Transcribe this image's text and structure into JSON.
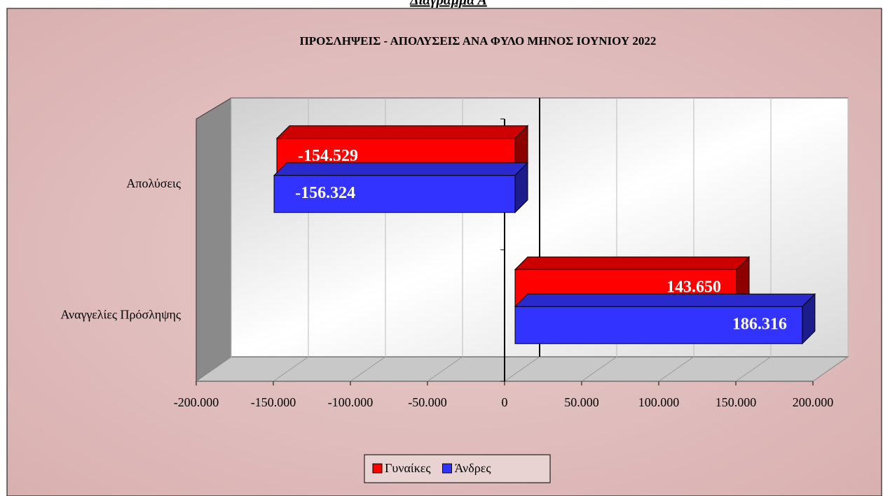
{
  "chart_data": {
    "type": "bar3d_horizontal",
    "heading": "Διάγραμμα Α",
    "title": "ΠΡΟΣΛΗΨΕΙΣ - ΑΠΟΛΥΣΕΙΣ ΑΝΑ ΦΥΛΟ ΜΗΝΟΣ  ΙΟΥΝΙΟΥ  2022",
    "categories": [
      "Απολύσεις",
      "Αναγγελίες Πρόσληψης"
    ],
    "series": [
      {
        "name": "Γυναίκες",
        "color": "#ff0000",
        "values": [
          -154529,
          143650
        ],
        "value_labels": [
          "-154.529",
          "143.650"
        ]
      },
      {
        "name": "Άνδρες",
        "color": "#3333ff",
        "values": [
          -156324,
          186316
        ],
        "value_labels": [
          "-156.324",
          "186.316"
        ]
      }
    ],
    "xlim": [
      -200000,
      200000
    ],
    "xticks": [
      {
        "value": -200000,
        "label": "-200.000"
      },
      {
        "value": -150000,
        "label": "-150.000"
      },
      {
        "value": -100000,
        "label": "-100.000"
      },
      {
        "value": -50000,
        "label": "-50.000"
      },
      0,
      {
        "value": 50000,
        "label": "50.000"
      },
      {
        "value": 100000,
        "label": "100.000"
      },
      {
        "value": 150000,
        "label": "150.000"
      },
      {
        "value": 200000,
        "label": "200.000"
      }
    ],
    "grid": true,
    "legend": "bottom"
  }
}
